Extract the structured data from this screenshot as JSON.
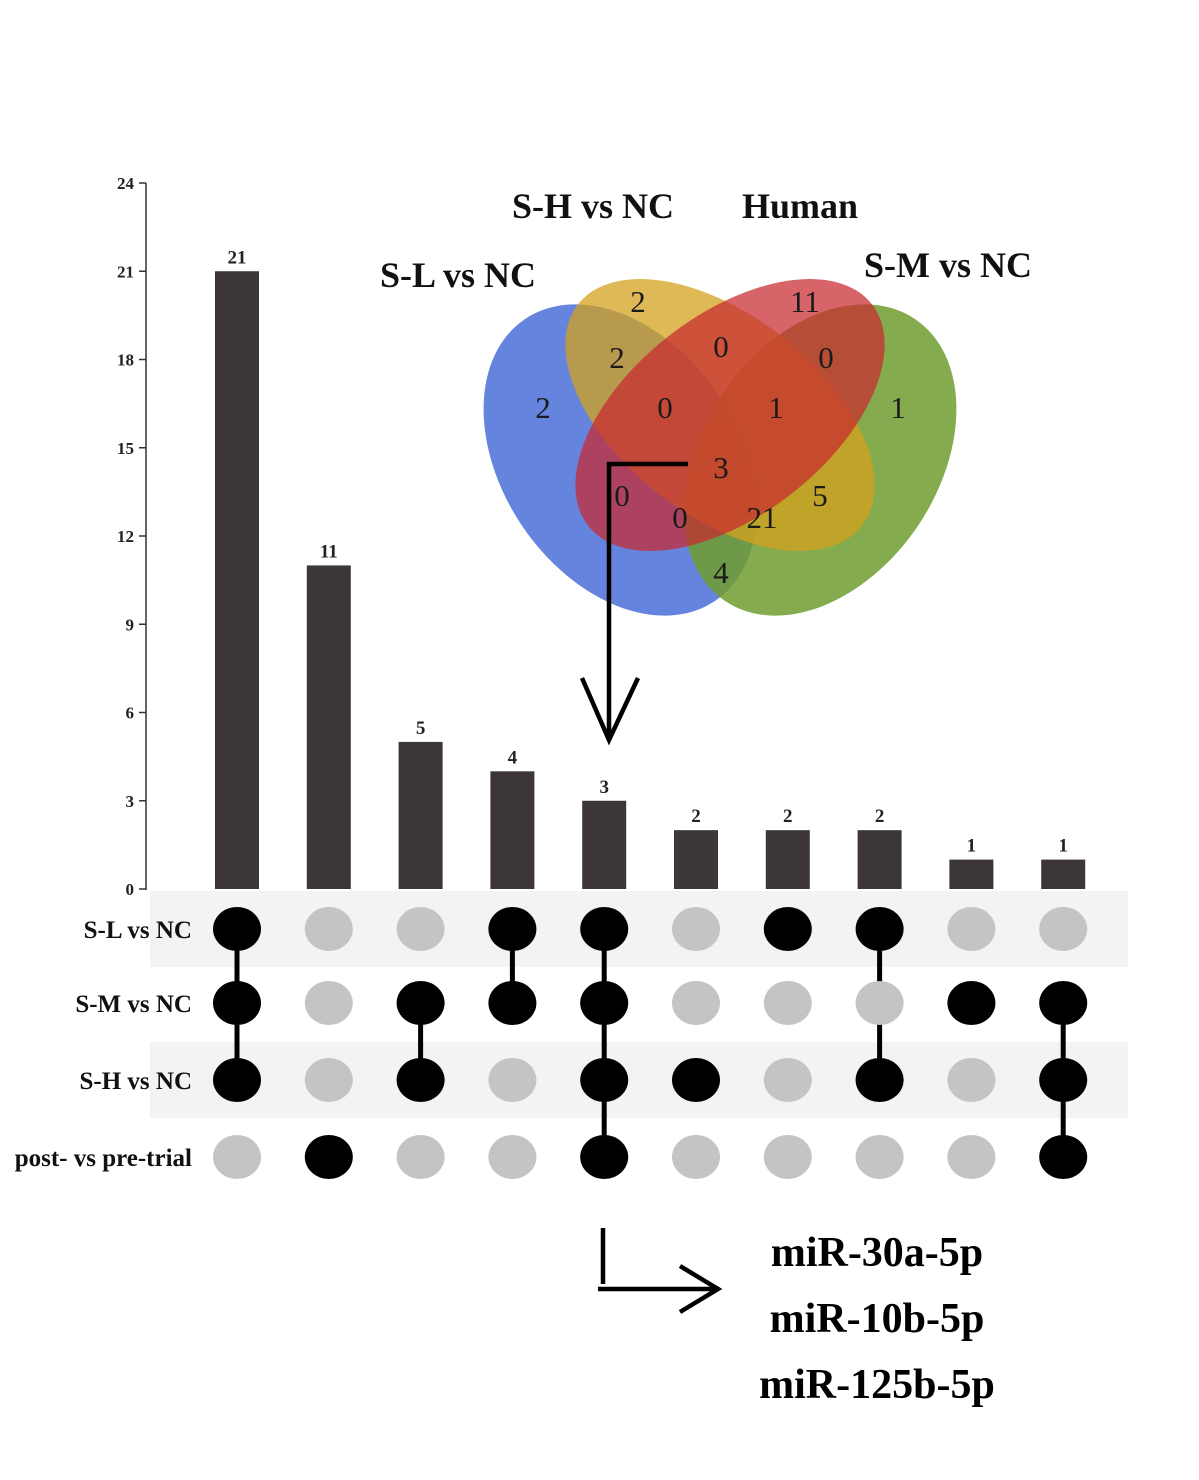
{
  "chart_data": {
    "type": "upset",
    "y_axis": {
      "ylim": [
        0,
        24
      ],
      "ticks": [
        0,
        3,
        6,
        9,
        12,
        15,
        18,
        21,
        24
      ]
    },
    "sets": [
      "S-L vs NC",
      "S-M vs NC",
      "S-H vs NC",
      "post- vs pre-trial"
    ],
    "intersections": [
      {
        "value": 21,
        "members": [
          0,
          1,
          2
        ]
      },
      {
        "value": 11,
        "members": [
          3
        ]
      },
      {
        "value": 5,
        "members": [
          1,
          2
        ]
      },
      {
        "value": 4,
        "members": [
          0,
          1
        ]
      },
      {
        "value": 3,
        "members": [
          0,
          1,
          2,
          3
        ]
      },
      {
        "value": 2,
        "members": [
          2
        ]
      },
      {
        "value": 2,
        "members": [
          0
        ]
      },
      {
        "value": 2,
        "members": [
          0,
          2
        ]
      },
      {
        "value": 1,
        "members": [
          1
        ]
      },
      {
        "value": 1,
        "members": [
          1,
          2,
          3
        ]
      }
    ],
    "venn": {
      "labels": {
        "sh": "S-H vs NC",
        "human": "Human",
        "sl": "S-L vs NC",
        "sm": "S-M vs NC"
      },
      "region_values": [
        {
          "id": "sh-only",
          "value": "2"
        },
        {
          "id": "human-only",
          "value": "11"
        },
        {
          "id": "sl-only",
          "value": "2"
        },
        {
          "id": "sm-only",
          "value": "1"
        },
        {
          "id": "sl-sh",
          "value": "2"
        },
        {
          "id": "sh-human",
          "value": "0"
        },
        {
          "id": "human-sm",
          "value": "0"
        },
        {
          "id": "sl-sh-human",
          "value": "0"
        },
        {
          "id": "sh-human-sm",
          "value": "1"
        },
        {
          "id": "all-four",
          "value": "3"
        },
        {
          "id": "sl-human",
          "value": "0"
        },
        {
          "id": "sl-human-sm",
          "value": "0"
        },
        {
          "id": "sl-sh-sm",
          "value": "21"
        },
        {
          "id": "sh-sm",
          "value": "5"
        },
        {
          "id": "sl-sm",
          "value": "4"
        }
      ]
    },
    "colors": {
      "bar": "#3d3636",
      "dot_on": "#000000",
      "dot_off": "#c4c4c4",
      "stripe": "#f3f3f3",
      "venn_sl": "#4a6fd8",
      "venn_sh": "#d4a21d",
      "venn_human": "#c8282f",
      "venn_sm": "#6f9c2e"
    }
  },
  "highlight": {
    "mirnas": [
      "miR-30a-5p",
      "miR-10b-5p",
      "miR-125b-5p"
    ]
  }
}
